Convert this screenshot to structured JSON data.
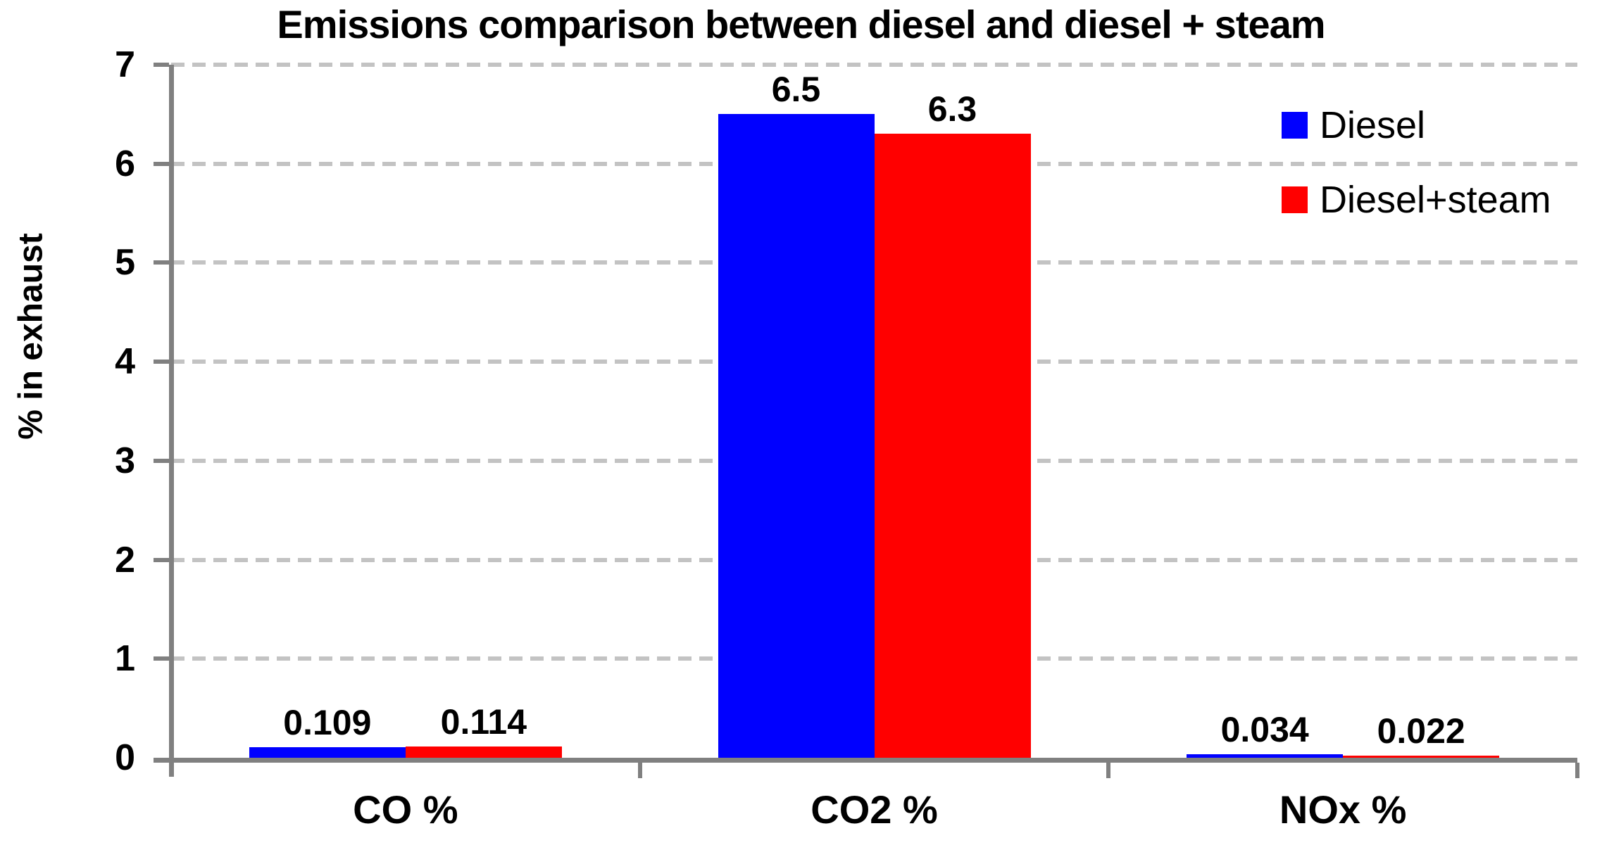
{
  "chart_data": {
    "type": "bar",
    "title": "Emissions comparison between diesel and diesel + steam",
    "ylabel": "% in exhaust",
    "xlabel": "",
    "categories": [
      "CO %",
      "CO2 %",
      "NOx %"
    ],
    "series": [
      {
        "name": "Diesel",
        "color": "#0000ff",
        "values": [
          0.109,
          6.5,
          0.034
        ],
        "labels": [
          "0.109",
          "6.5",
          "0.034"
        ]
      },
      {
        "name": "Diesel+steam",
        "color": "#ff0000",
        "values": [
          0.114,
          6.3,
          0.022
        ],
        "labels": [
          "0.114",
          "6.3",
          "0.022"
        ]
      }
    ],
    "ylim": [
      0,
      7
    ],
    "yticks": [
      "0",
      "1",
      "2",
      "3",
      "4",
      "5",
      "6",
      "7"
    ],
    "grid": "horizontal-dashed",
    "legend_position": "upper-right",
    "colors": {
      "axis": "#808080",
      "gridline": "#c3c3c3",
      "text": "#000000",
      "background": "#ffffff"
    }
  }
}
